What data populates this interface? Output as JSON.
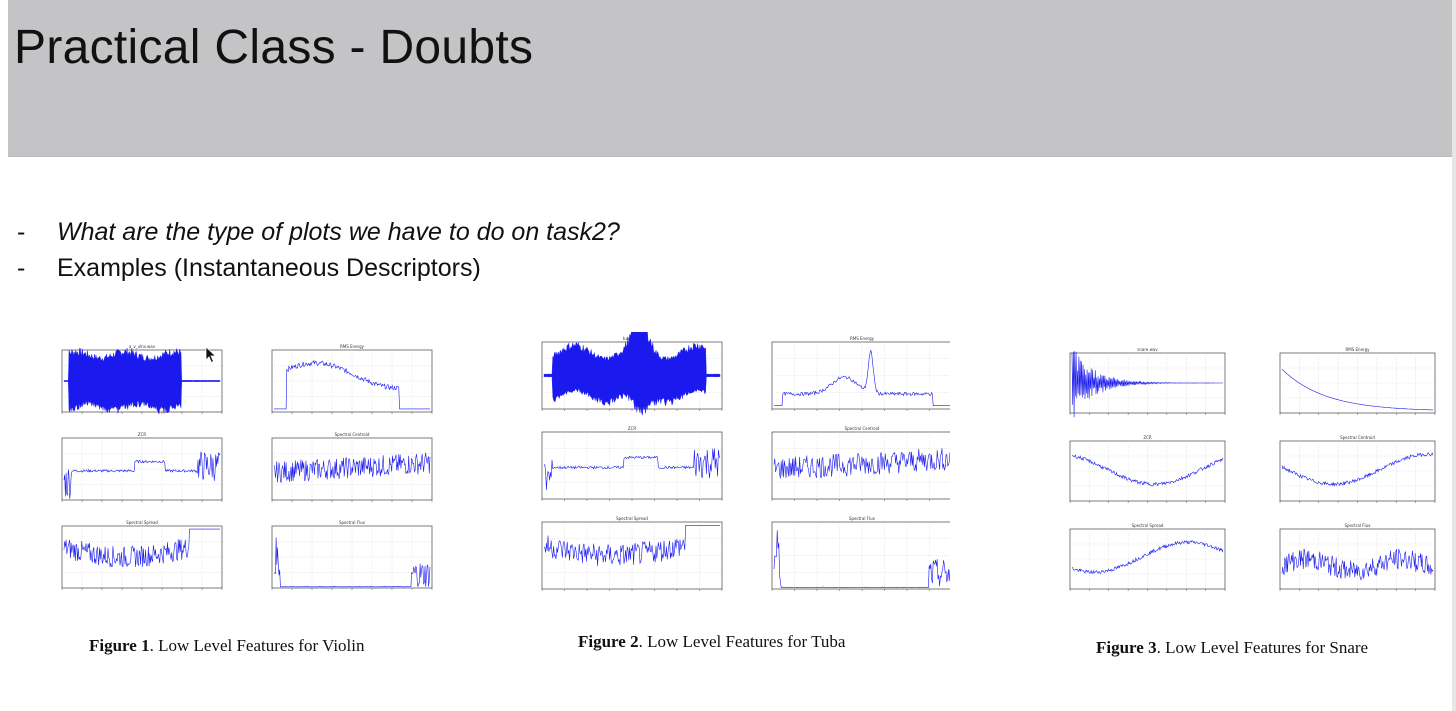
{
  "slide": {
    "title": "Practical Class - Doubts",
    "bullets": [
      {
        "marker": "-",
        "text": "What are the type of plots we have to do on task2?"
      },
      {
        "marker": "-",
        "text": "Examples (Instantaneous Descriptors)"
      }
    ]
  },
  "figures": [
    {
      "label": "Figure 1",
      "caption_rest": ". Low Level Features for Violin",
      "panels": [
        {
          "kind": "waveform",
          "title": "a_v_vlnv.wav"
        },
        {
          "kind": "envelope",
          "title": "RMS Energy"
        },
        {
          "kind": "zcr",
          "title": "ZCR"
        },
        {
          "kind": "noisy",
          "title": "Spectral Centroid"
        },
        {
          "kind": "noisy-end",
          "title": "Spectral Spread"
        },
        {
          "kind": "flux",
          "title": "Spectral Flux"
        }
      ]
    },
    {
      "label": "Figure 2",
      "caption_rest": ". Low Level Features for Tuba",
      "panels": [
        {
          "kind": "waveform-peak",
          "title": "tuba.wav"
        },
        {
          "kind": "envelope-peak",
          "title": "RMS Energy"
        },
        {
          "kind": "zcr",
          "title": "ZCR"
        },
        {
          "kind": "noisy",
          "title": "Spectral Centroid"
        },
        {
          "kind": "noisy-end",
          "title": "Spectral Spread"
        },
        {
          "kind": "flux",
          "title": "Spectral Flux"
        }
      ]
    },
    {
      "label": "Figure 3",
      "caption_rest": ". Low Level Features for Snare",
      "panels": [
        {
          "kind": "decay",
          "title": "snare.wav"
        },
        {
          "kind": "decay-line",
          "title": "RMS Energy"
        },
        {
          "kind": "smooth",
          "title": "ZCR"
        },
        {
          "kind": "smooth",
          "title": "Spectral Centroid"
        },
        {
          "kind": "smooth",
          "title": "Spectral Spread"
        },
        {
          "kind": "jagged",
          "title": "Spectral Flux"
        }
      ]
    }
  ],
  "colors": {
    "title_bar": "#c4c4c6",
    "plot_blue": "#1a1aee",
    "grid": "#d0d0d0"
  }
}
